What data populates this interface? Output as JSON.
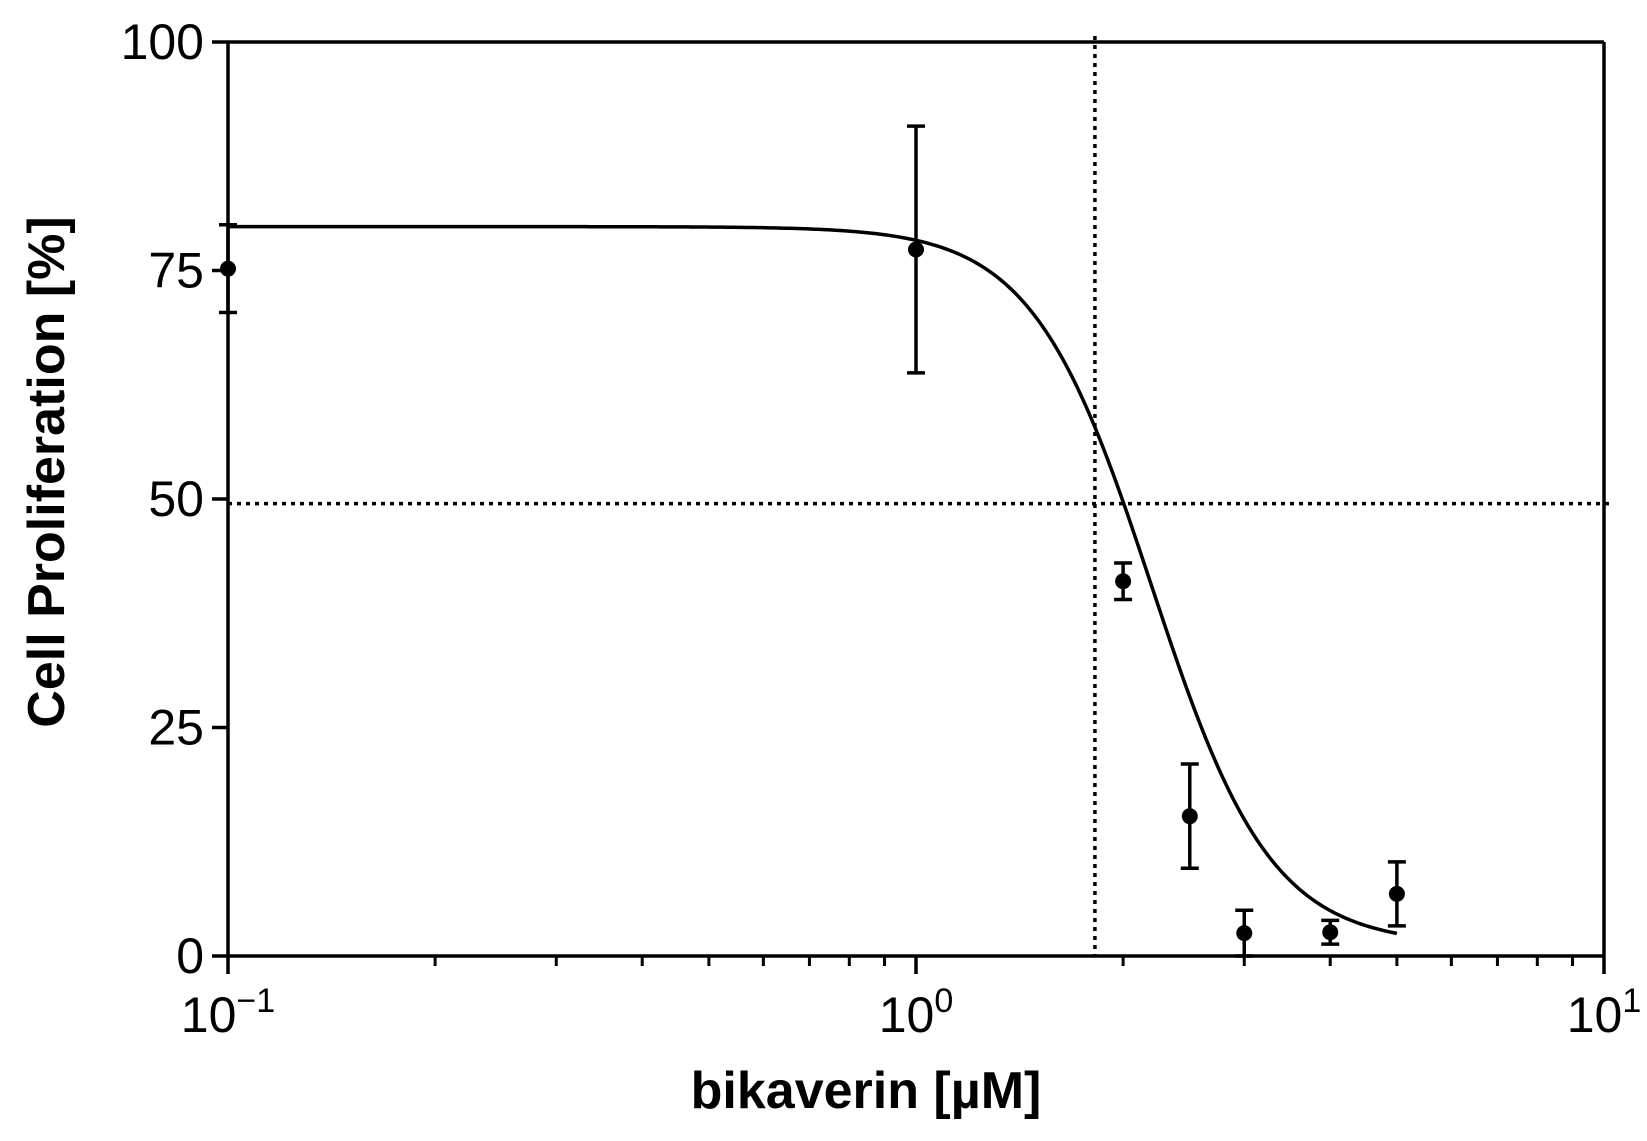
{
  "chart_data": {
    "type": "scatter",
    "xlabel": "bikaverin [µM]",
    "ylabel": "Cell Proliferation [%]",
    "x_scale": "log",
    "xlim": [
      0.1,
      10
    ],
    "ylim": [
      0,
      100
    ],
    "x_ticks": [
      {
        "value": 0.1,
        "base": "10",
        "exponent": "−1"
      },
      {
        "value": 1,
        "base": "10",
        "exponent": "0"
      },
      {
        "value": 10,
        "base": "10",
        "exponent": "1"
      }
    ],
    "y_ticks": [
      {
        "value": 0,
        "label": "0"
      },
      {
        "value": 25,
        "label": "25"
      },
      {
        "value": 50,
        "label": "50"
      },
      {
        "value": 75,
        "label": "75"
      },
      {
        "value": 100,
        "label": "100"
      }
    ],
    "points": [
      {
        "x": 0.1,
        "y": 75.2,
        "err": 4.8
      },
      {
        "x": 1.0,
        "y": 77.3,
        "err": 13.5
      },
      {
        "x": 2.0,
        "y": 41.0,
        "err": 2.0
      },
      {
        "x": 2.5,
        "y": 15.3,
        "err": 5.7
      },
      {
        "x": 3.0,
        "y": 2.5,
        "err": 2.5
      },
      {
        "x": 4.0,
        "y": 2.6,
        "err": 1.3
      },
      {
        "x": 5.0,
        "y": 6.8,
        "err": 3.5
      }
    ],
    "fit": {
      "top": 79.8,
      "bottom": 1.2,
      "ic50": 2.2,
      "hill": 5.0,
      "x_range": [
        0.1,
        5.0
      ]
    },
    "reference_lines": {
      "x": 1.82,
      "y": 49.5
    },
    "grid": false,
    "colors": {
      "marks": "#000000",
      "background": "#ffffff"
    }
  }
}
